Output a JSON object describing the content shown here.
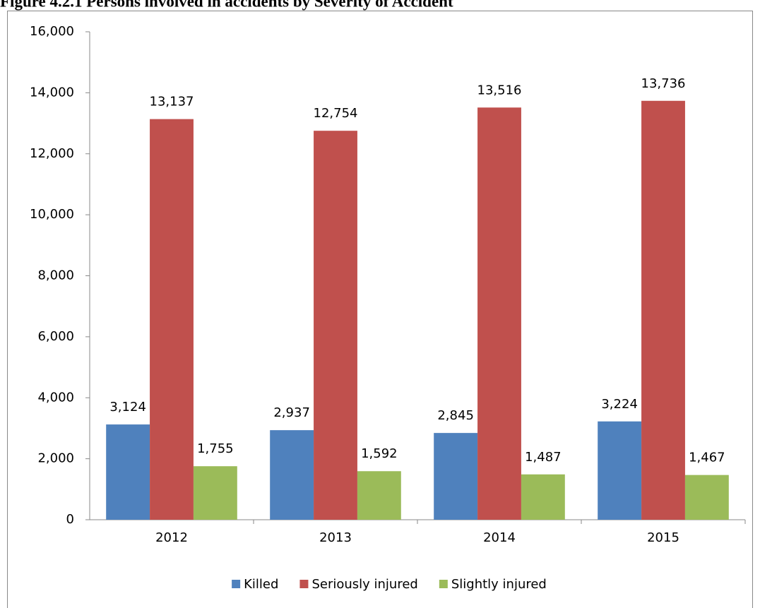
{
  "chart_data": {
    "type": "bar",
    "title": "Figure 4.2.1 Persons involved in accidents by Severity of Accident",
    "categories": [
      "2012",
      "2013",
      "2014",
      "2015"
    ],
    "series": [
      {
        "name": "Killed",
        "color": "#4f81bd",
        "values": [
          3124,
          2937,
          2845,
          3224
        ],
        "value_labels": [
          "3,124",
          "2,937",
          "2,845",
          "3,224"
        ]
      },
      {
        "name": "Seriously injured",
        "color": "#c0504d",
        "values": [
          13137,
          12754,
          13516,
          13736
        ],
        "value_labels": [
          "13,137",
          "12,754",
          "13,516",
          "13,736"
        ]
      },
      {
        "name": "Slightly injured",
        "color": "#9bbb59",
        "values": [
          1755,
          1592,
          1487,
          1467
        ],
        "value_labels": [
          "1,755",
          "1,592",
          "1,487",
          "1,467"
        ]
      }
    ],
    "ylim": [
      0,
      16000
    ],
    "yticks": [
      0,
      {
        "value": 2000,
        "label": "2,000"
      },
      {
        "value": 4000,
        "label": "4,000"
      },
      {
        "value": 6000,
        "label": "6,000"
      },
      {
        "value": 8000,
        "label": "8,000"
      },
      {
        "value": 10000,
        "label": "10,000"
      },
      {
        "value": 12000,
        "label": "12,000"
      },
      {
        "value": 14000,
        "label": "14,000"
      },
      {
        "value": 16000,
        "label": "16,000"
      }
    ],
    "legend": "bottom"
  }
}
